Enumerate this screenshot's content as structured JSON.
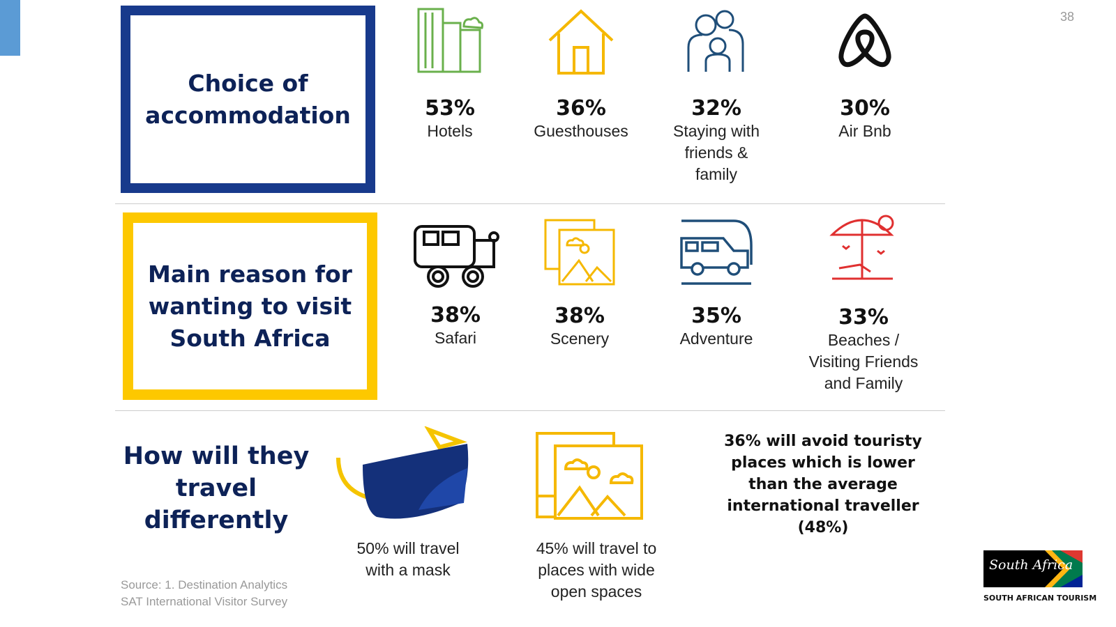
{
  "page_number": "38",
  "accommodation": {
    "title": "Choice of accommodation",
    "items": [
      {
        "pct": "53%",
        "label": "Hotels",
        "icon": "hotel-buildings-icon",
        "color": "#6ab04c"
      },
      {
        "pct": "36%",
        "label": "Guesthouses",
        "icon": "house-icon",
        "color": "#f5b800"
      },
      {
        "pct": "32%",
        "label": "Staying with friends & family",
        "icon": "family-icon",
        "color": "#1f4e79"
      },
      {
        "pct": "30%",
        "label": "Air Bnb",
        "icon": "airbnb-icon",
        "color": "#111111"
      }
    ]
  },
  "reasons": {
    "title": "Main reason for wanting to visit South Africa",
    "items": [
      {
        "pct": "38%",
        "label": "Safari",
        "icon": "safari-jeep-icon",
        "color": "#111111"
      },
      {
        "pct": "38%",
        "label": "Scenery",
        "icon": "scenery-pictures-icon",
        "color": "#f5b800"
      },
      {
        "pct": "35%",
        "label": "Adventure",
        "icon": "car-icon",
        "color": "#1f4e79"
      },
      {
        "pct": "33%",
        "label": "Beaches / Visiting Friends and Family",
        "icon": "beach-umbrella-icon",
        "color": "#e03030"
      }
    ]
  },
  "travel": {
    "title": "How will they travel differently",
    "mask_caption": "50% will travel with a mask",
    "open_caption": "45% will travel to places with wide open spaces",
    "avoid_text": "36% will avoid touristy places which is lower than the average international traveller (48%)"
  },
  "source": {
    "line1": "Source: 1. Destination Analytics",
    "line2": "SAT International Visitor Survey"
  },
  "logo": {
    "text": "South Africa",
    "subtitle": "SOUTH AFRICAN TOURISM"
  },
  "colors": {
    "navy": "#183a8c",
    "yellow": "#fdc800",
    "accent": "#5b9bd5"
  }
}
